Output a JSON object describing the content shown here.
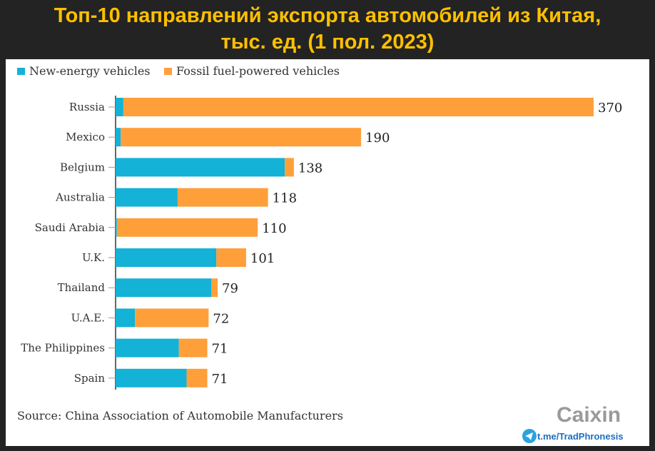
{
  "chart_data": {
    "type": "bar",
    "orientation": "horizontal",
    "stacked": true,
    "title": "Топ-10 направлений экспорта автомобилей из Китая, тыс. ед. (1 пол. 2023)",
    "title_lines": [
      "Топ-10 направлений экспорта автомобилей из Китая,",
      "тыс. ед. (1 пол. 2023)"
    ],
    "categories": [
      "Russia",
      "Mexico",
      "Belgium",
      "Australia",
      "Saudi Arabia",
      "U.K.",
      "Thailand",
      "U.A.E.",
      "The Philippines",
      "Spain"
    ],
    "series": [
      {
        "name": "New-energy vehicles",
        "color": "#13b2d6",
        "values": [
          6,
          4,
          131,
          48,
          1,
          78,
          74,
          15,
          49,
          55
        ]
      },
      {
        "name": "Fossil fuel-powered vehicles",
        "color": "#ff9f3a",
        "values": [
          364,
          186,
          7,
          70,
          109,
          23,
          5,
          57,
          22,
          16
        ]
      }
    ],
    "totals": [
      370,
      190,
      138,
      118,
      110,
      101,
      79,
      72,
      71,
      71
    ],
    "total_labels": [
      "370",
      "190",
      "138",
      "118",
      "110",
      "101",
      "79",
      "72",
      "71",
      "71"
    ],
    "xlim": [
      0,
      370
    ],
    "grid": false,
    "legend_placement": "top-left",
    "source": "Source: China Association of Automobile Manufacturers"
  },
  "branding": {
    "logo": "Caixin",
    "telegram": "t.me/TradPhronesis"
  }
}
